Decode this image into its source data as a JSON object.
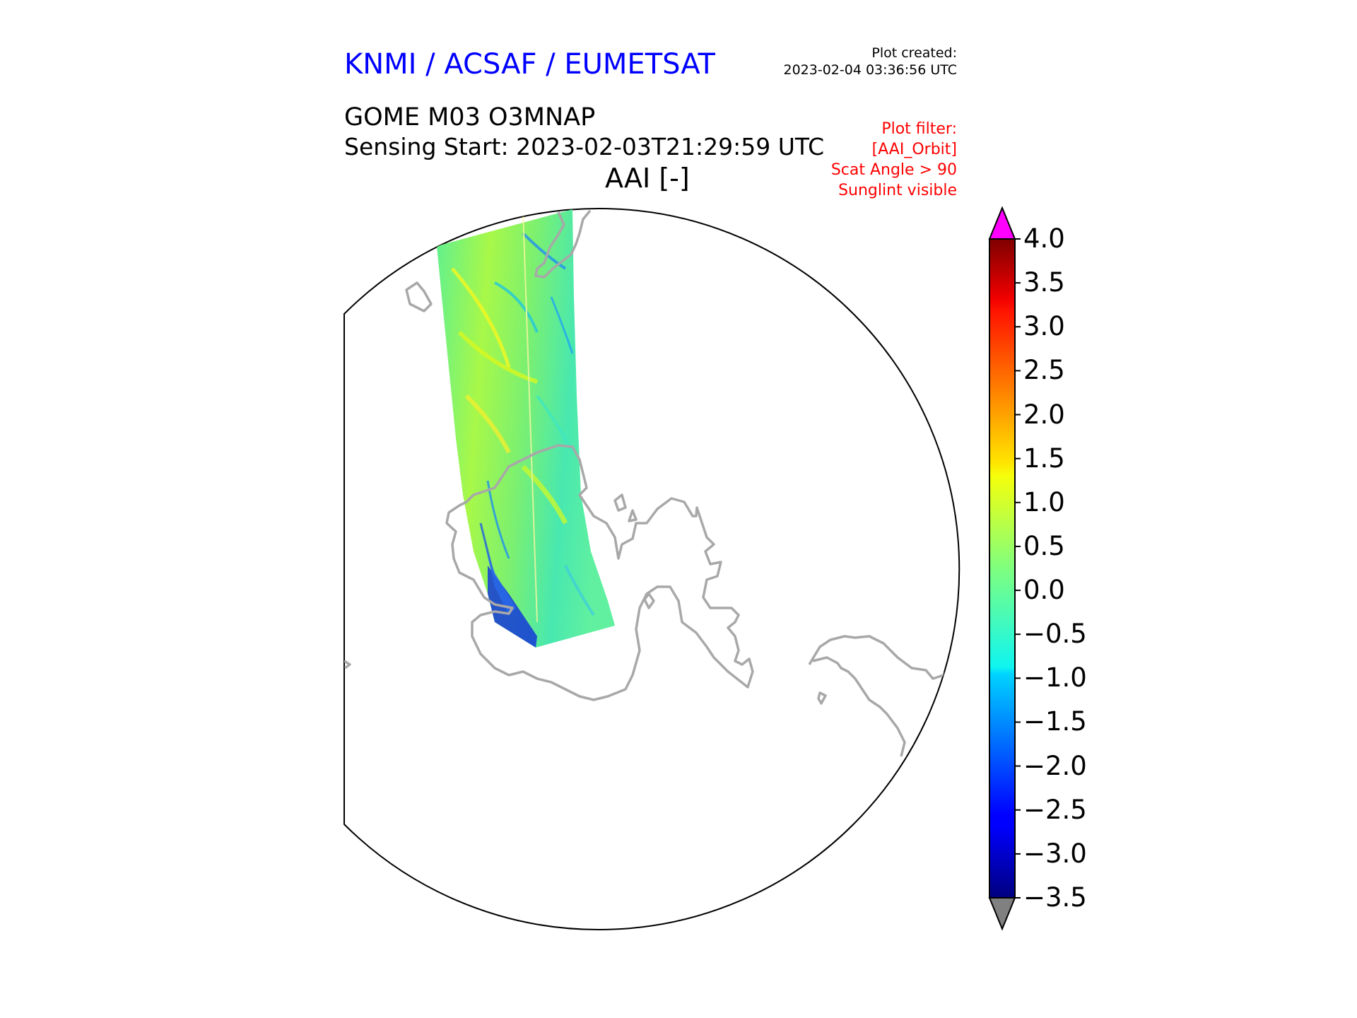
{
  "header": {
    "org": "KNMI / ACSAF / EUMETSAT",
    "org_color": "#0000ff",
    "plot_created_label": "Plot created:",
    "plot_created_value": "2023-02-04 03:36:56 UTC",
    "product": "GOME M03 O3MNAP",
    "sensing": "Sensing Start: 2023-02-03T21:29:59 UTC",
    "variable": "AAI [-]"
  },
  "filter": {
    "color": "#ff0000",
    "lines": [
      "Plot filter:",
      "[AAI_Orbit]",
      "Scat Angle > 90",
      "Sunglint visible"
    ]
  },
  "map": {
    "projection": "orthographic (south polar)",
    "coastline_color": "#a0a0a0",
    "swath_colors": [
      "#7fff60",
      "#b0ff30",
      "#40ffa0",
      "#20e0d8",
      "#30a0ff",
      "#1030e0"
    ]
  },
  "colorbar": {
    "ticks": [
      "4.0",
      "3.5",
      "3.0",
      "2.5",
      "2.0",
      "1.5",
      "1.0",
      "0.5",
      "0.0",
      "−0.5",
      "−1.0",
      "−1.5",
      "−2.0",
      "−2.5",
      "−3.0",
      "−3.5"
    ],
    "min": -3.5,
    "max": 4.0,
    "over_color": "#ff00ff",
    "under_color": "#808080",
    "colormap": "jet"
  }
}
